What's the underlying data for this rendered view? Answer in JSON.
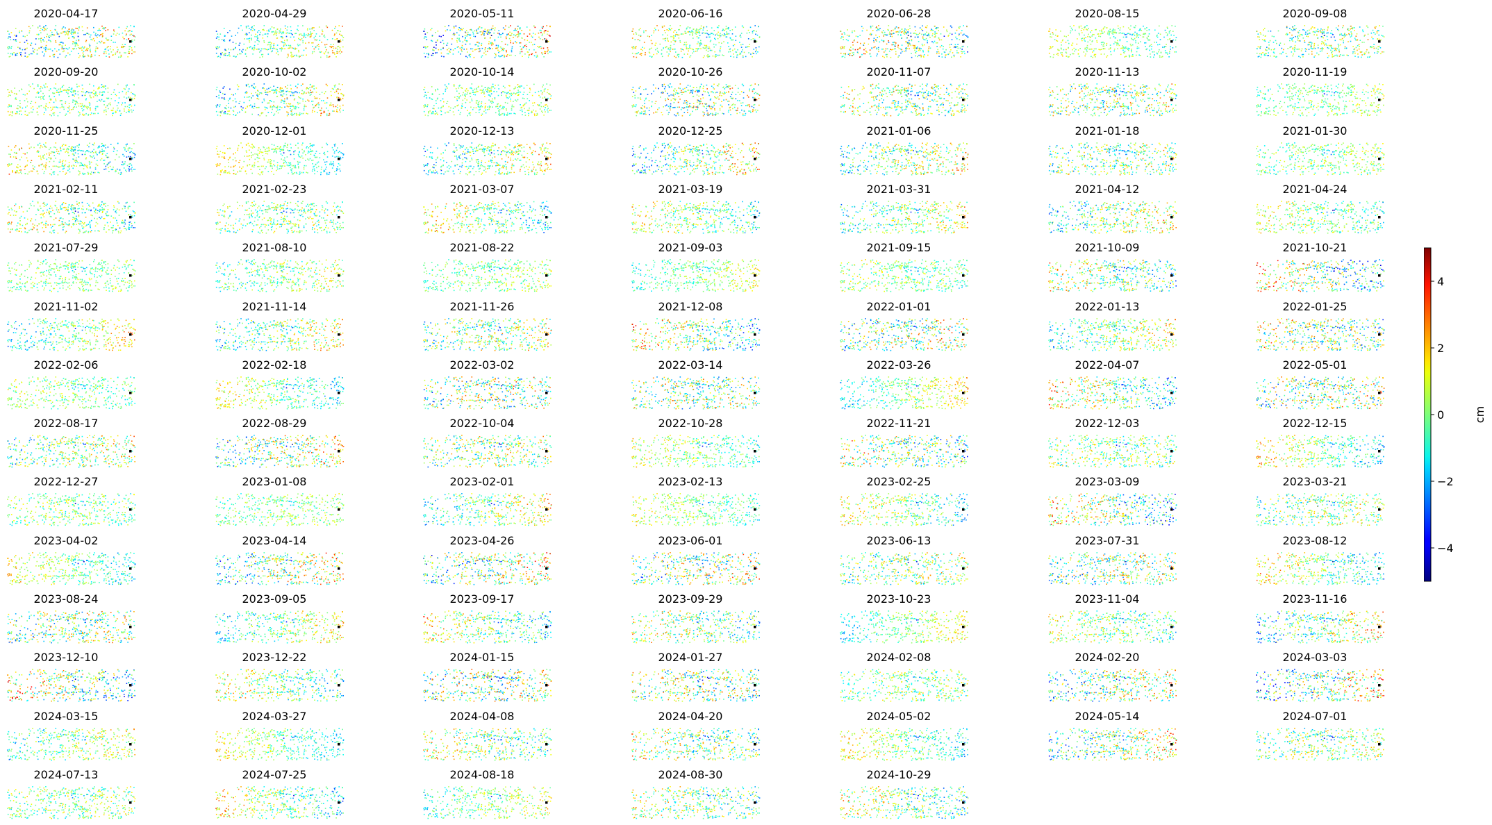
{
  "chart_data": {
    "type": "heatmap",
    "description_unit": "cm",
    "colormap": "jet",
    "value_range": [
      -5,
      5
    ],
    "reference_point": "black square marker near right edge of each panel",
    "panels": [
      "2020-04-17",
      "2020-04-29",
      "2020-05-11",
      "2020-06-16",
      "2020-06-28",
      "2020-08-15",
      "2020-09-08",
      "2020-09-20",
      "2020-10-02",
      "2020-10-14",
      "2020-10-26",
      "2020-11-07",
      "2020-11-13",
      "2020-11-19",
      "2020-11-25",
      "2020-12-01",
      "2020-12-13",
      "2020-12-25",
      "2021-01-06",
      "2021-01-18",
      "2021-01-30",
      "2021-02-11",
      "2021-02-23",
      "2021-03-07",
      "2021-03-19",
      "2021-03-31",
      "2021-04-12",
      "2021-04-24",
      "2021-07-29",
      "2021-08-10",
      "2021-08-22",
      "2021-09-03",
      "2021-09-15",
      "2021-10-09",
      "2021-10-21",
      "2021-11-02",
      "2021-11-14",
      "2021-11-26",
      "2021-12-08",
      "2022-01-01",
      "2022-01-13",
      "2022-01-25",
      "2022-02-06",
      "2022-02-18",
      "2022-03-02",
      "2022-03-14",
      "2022-03-26",
      "2022-04-07",
      "2022-05-01",
      "2022-08-17",
      "2022-08-29",
      "2022-10-04",
      "2022-10-28",
      "2022-11-21",
      "2022-12-03",
      "2022-12-15",
      "2022-12-27",
      "2023-01-08",
      "2023-02-01",
      "2023-02-13",
      "2023-02-25",
      "2023-03-09",
      "2023-03-21",
      "2023-04-02",
      "2023-04-14",
      "2023-04-26",
      "2023-06-01",
      "2023-06-13",
      "2023-07-31",
      "2023-08-12",
      "2023-08-24",
      "2023-09-05",
      "2023-09-17",
      "2023-09-29",
      "2023-10-23",
      "2023-11-04",
      "2023-11-16",
      "2023-12-10",
      "2023-12-22",
      "2024-01-15",
      "2024-01-27",
      "2024-02-08",
      "2024-02-20",
      "2024-03-03",
      "2024-03-15",
      "2024-03-27",
      "2024-04-08",
      "2024-04-20",
      "2024-05-02",
      "2024-05-14",
      "2024-07-01",
      "2024-07-13",
      "2024-07-25",
      "2024-08-18",
      "2024-08-30",
      "2024-10-29"
    ],
    "colorbar": {
      "label": "cm",
      "ticks": [
        -4,
        -2,
        0,
        2,
        4
      ],
      "tick_labels": [
        "−4",
        "−2",
        "0",
        "2",
        "4"
      ],
      "range": [
        -5,
        5
      ]
    }
  }
}
